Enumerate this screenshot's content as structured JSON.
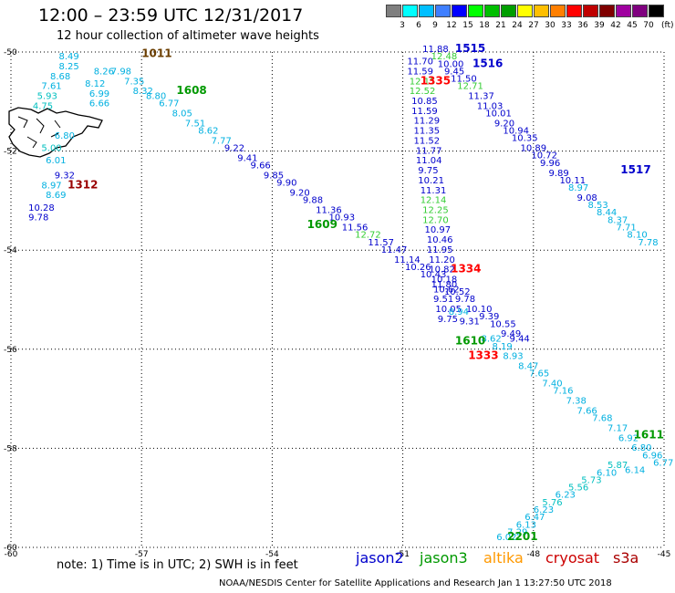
{
  "title": "12:00 – 23:59 UTC 12/31/2017",
  "subtitle": "12 hour collection of altimeter wave heights",
  "note": "note: 1) Time is in UTC; 2) SWH is in feet",
  "footer": "NOAA/NESDIS Center for Satellite Applications and Research    Jan  1 13:27:50 UTC 2018",
  "colorbar": {
    "unit": "(ft)",
    "colors": [
      "#7f7f7f",
      "#00ffff",
      "#00bfff",
      "#3f7fff",
      "#0000ff",
      "#00ff00",
      "#00bf00",
      "#009f00",
      "#ffff00",
      "#ffbf00",
      "#ff7f00",
      "#ff0000",
      "#bf0000",
      "#7f0000",
      "#9f009f",
      "#7f007f",
      "#000000"
    ],
    "labels": [
      "3",
      "6",
      "9",
      "12",
      "15",
      "18",
      "21",
      "24",
      "27",
      "30",
      "33",
      "36",
      "39",
      "42",
      "45",
      "70"
    ]
  },
  "satellites": [
    {
      "name": "jason2",
      "color": "#0000cc"
    },
    {
      "name": "jason3",
      "color": "#009900"
    },
    {
      "name": "altika",
      "color": "#ff9900"
    },
    {
      "name": "cryosat",
      "color": "#cc0000"
    },
    {
      "name": "s3a",
      "color": "#aa0000"
    }
  ],
  "axes": {
    "lon_labels": [
      "-60",
      "-57",
      "-54",
      "-51",
      "-48",
      "-45"
    ],
    "lat_labels": [
      "-50",
      "-52",
      "-54",
      "-56",
      "-58",
      "-60"
    ],
    "lon_range": [
      -60,
      -45
    ],
    "lat_range": [
      -60,
      -50
    ]
  },
  "time_labels": [
    {
      "text": "1011",
      "lon": -57.0,
      "lat": -50.1,
      "color": "#6b3e00"
    },
    {
      "text": "1608",
      "lon": -56.2,
      "lat": -50.85,
      "color": "#009900"
    },
    {
      "text": "1312",
      "lon": -58.7,
      "lat": -52.75,
      "color": "#990000"
    },
    {
      "text": "1609",
      "lon": -53.2,
      "lat": -53.55,
      "color": "#009900"
    },
    {
      "text": "1515",
      "lon": -49.8,
      "lat": -50.0,
      "color": "#0000cc"
    },
    {
      "text": "1516",
      "lon": -49.4,
      "lat": -50.3,
      "color": "#0000cc"
    },
    {
      "text": "1335",
      "lon": -50.6,
      "lat": -50.65,
      "color": "#ff0000"
    },
    {
      "text": "1517",
      "lon": -46.0,
      "lat": -52.45,
      "color": "#0000cc"
    },
    {
      "text": "1334",
      "lon": -49.9,
      "lat": -54.45,
      "color": "#ff0000"
    },
    {
      "text": "1610",
      "lon": -49.8,
      "lat": -55.9,
      "color": "#009900"
    },
    {
      "text": "1333",
      "lon": -49.5,
      "lat": -56.2,
      "color": "#ff0000"
    },
    {
      "text": "1611",
      "lon": -45.7,
      "lat": -57.8,
      "color": "#009900"
    },
    {
      "text": "2201",
      "lon": -48.6,
      "lat": -59.85,
      "color": "#009900"
    }
  ],
  "tracks": [
    {
      "name": "track-1608-1609-1610",
      "values": [
        {
          "v": "8.49",
          "lon": -58.9,
          "lat": -50.15
        },
        {
          "v": "8.25",
          "lon": -58.9,
          "lat": -50.35
        },
        {
          "v": "8.68",
          "lon": -59.1,
          "lat": -50.55
        },
        {
          "v": "7.61",
          "lon": -59.3,
          "lat": -50.75
        },
        {
          "v": "5.93",
          "lon": -59.4,
          "lat": -50.95
        },
        {
          "v": "4.75",
          "lon": -59.5,
          "lat": -51.15
        },
        {
          "v": "8.26",
          "lon": -58.1,
          "lat": -50.45
        },
        {
          "v": "8.12",
          "lon": -58.3,
          "lat": -50.7
        },
        {
          "v": "6.99",
          "lon": -58.2,
          "lat": -50.9
        },
        {
          "v": "6.66",
          "lon": -58.2,
          "lat": -51.1
        },
        {
          "v": "7.98",
          "lon": -57.7,
          "lat": -50.45
        },
        {
          "v": "7.35",
          "lon": -57.4,
          "lat": -50.65
        },
        {
          "v": "8.32",
          "lon": -57.2,
          "lat": -50.85
        },
        {
          "v": "8.80",
          "lon": -56.9,
          "lat": -50.95
        },
        {
          "v": "6.77",
          "lon": -56.6,
          "lat": -51.1
        },
        {
          "v": "8.05",
          "lon": -56.3,
          "lat": -51.3
        },
        {
          "v": "7.51",
          "lon": -56.0,
          "lat": -51.5
        },
        {
          "v": "8.62",
          "lon": -55.7,
          "lat": -51.65
        },
        {
          "v": "7.77",
          "lon": -55.4,
          "lat": -51.85
        },
        {
          "v": "9.22",
          "lon": -55.1,
          "lat": -52.0
        },
        {
          "v": "9.41",
          "lon": -54.8,
          "lat": -52.2
        },
        {
          "v": "9.66",
          "lon": -54.5,
          "lat": -52.35
        },
        {
          "v": "9.85",
          "lon": -54.2,
          "lat": -52.55
        },
        {
          "v": "9.90",
          "lon": -53.9,
          "lat": -52.7
        },
        {
          "v": "9.20",
          "lon": -53.6,
          "lat": -52.9
        },
        {
          "v": "9.88",
          "lon": -53.3,
          "lat": -53.05
        },
        {
          "v": "11.36",
          "lon": -53.0,
          "lat": -53.25
        },
        {
          "v": "10.93",
          "lon": -52.7,
          "lat": -53.4
        },
        {
          "v": "11.56",
          "lon": -52.4,
          "lat": -53.6
        },
        {
          "v": "12.72",
          "lon": -52.1,
          "lat": -53.75
        },
        {
          "v": "11.57",
          "lon": -51.8,
          "lat": -53.9
        },
        {
          "v": "11.47",
          "lon": -51.5,
          "lat": -54.05
        },
        {
          "v": "11.14",
          "lon": -51.2,
          "lat": -54.25
        },
        {
          "v": "10.26",
          "lon": -50.95,
          "lat": -54.4
        },
        {
          "v": "10.43",
          "lon": -50.6,
          "lat": -54.55
        },
        {
          "v": "11.80",
          "lon": -50.35,
          "lat": -54.75
        },
        {
          "v": "10.52",
          "lon": -50.05,
          "lat": -54.9
        },
        {
          "v": "9.78",
          "lon": -49.8,
          "lat": -55.05
        },
        {
          "v": "10.10",
          "lon": -49.55,
          "lat": -55.25
        },
        {
          "v": "9.39",
          "lon": -49.25,
          "lat": -55.4
        },
        {
          "v": "10.55",
          "lon": -49.0,
          "lat": -55.55
        },
        {
          "v": "9.49",
          "lon": -48.75,
          "lat": -55.75
        },
        {
          "v": "9.44",
          "lon": -48.55,
          "lat": -55.85
        }
      ]
    },
    {
      "name": "track-1312",
      "values": [
        {
          "v": "6.80",
          "lon": -59.0,
          "lat": -51.75
        },
        {
          "v": "5.00",
          "lon": -59.3,
          "lat": -52.0
        },
        {
          "v": "6.01",
          "lon": -59.2,
          "lat": -52.25
        },
        {
          "v": "9.32",
          "lon": -59.0,
          "lat": -52.55
        },
        {
          "v": "8.97",
          "lon": -59.3,
          "lat": -52.75
        },
        {
          "v": "8.69",
          "lon": -59.2,
          "lat": -52.95
        },
        {
          "v": "10.28",
          "lon": -59.6,
          "lat": -53.2
        },
        {
          "v": "9.78",
          "lon": -59.6,
          "lat": -53.4
        }
      ]
    },
    {
      "name": "track-1334-descending",
      "values": [
        {
          "v": "11.70",
          "lon": -50.9,
          "lat": -50.25
        },
        {
          "v": "11.59",
          "lon": -50.9,
          "lat": -50.45
        },
        {
          "v": "12.15",
          "lon": -50.85,
          "lat": -50.65
        },
        {
          "v": "12.52",
          "lon": -50.85,
          "lat": -50.85
        },
        {
          "v": "10.85",
          "lon": -50.8,
          "lat": -51.05
        },
        {
          "v": "11.59",
          "lon": -50.8,
          "lat": -51.25
        },
        {
          "v": "11.29",
          "lon": -50.75,
          "lat": -51.45
        },
        {
          "v": "11.35",
          "lon": -50.75,
          "lat": -51.65
        },
        {
          "v": "11.52",
          "lon": -50.75,
          "lat": -51.85
        },
        {
          "v": "11.77",
          "lon": -50.7,
          "lat": -52.05
        },
        {
          "v": "11.04",
          "lon": -50.7,
          "lat": -52.25
        },
        {
          "v": "9.75",
          "lon": -50.65,
          "lat": -52.45
        },
        {
          "v": "10.21",
          "lon": -50.65,
          "lat": -52.65
        },
        {
          "v": "11.31",
          "lon": -50.6,
          "lat": -52.85
        },
        {
          "v": "12.14",
          "lon": -50.6,
          "lat": -53.05
        },
        {
          "v": "12.25",
          "lon": -50.55,
          "lat": -53.25
        },
        {
          "v": "12.70",
          "lon": -50.55,
          "lat": -53.45
        },
        {
          "v": "10.97",
          "lon": -50.5,
          "lat": -53.65
        },
        {
          "v": "10.46",
          "lon": -50.45,
          "lat": -53.85
        },
        {
          "v": "11.95",
          "lon": -50.45,
          "lat": -54.05
        },
        {
          "v": "11.20",
          "lon": -50.4,
          "lat": -54.25
        },
        {
          "v": "10.82",
          "lon": -50.4,
          "lat": -54.45
        },
        {
          "v": "10.18",
          "lon": -50.35,
          "lat": -54.65
        },
        {
          "v": "10.62",
          "lon": -50.3,
          "lat": -54.85
        },
        {
          "v": "9.51",
          "lon": -50.3,
          "lat": -55.05
        },
        {
          "v": "10.05",
          "lon": -50.25,
          "lat": -55.25
        },
        {
          "v": "9.75",
          "lon": -50.2,
          "lat": -55.45
        }
      ]
    },
    {
      "name": "track-1515-1517",
      "values": [
        {
          "v": "11.88",
          "lon": -50.55,
          "lat": -50.0
        },
        {
          "v": "12.48",
          "lon": -50.35,
          "lat": -50.15
        },
        {
          "v": "10.00",
          "lon": -50.2,
          "lat": -50.3
        },
        {
          "v": "9.45",
          "lon": -50.05,
          "lat": -50.45
        },
        {
          "v": "11.50",
          "lon": -49.9,
          "lat": -50.6
        },
        {
          "v": "12.71",
          "lon": -49.75,
          "lat": -50.75
        },
        {
          "v": "11.37",
          "lon": -49.5,
          "lat": -50.95
        },
        {
          "v": "11.03",
          "lon": -49.3,
          "lat": -51.15
        },
        {
          "v": "10.01",
          "lon": -49.1,
          "lat": -51.3
        },
        {
          "v": "9.20",
          "lon": -48.9,
          "lat": -51.5
        },
        {
          "v": "10.94",
          "lon": -48.7,
          "lat": -51.65
        },
        {
          "v": "10.35",
          "lon": -48.5,
          "lat": -51.8
        },
        {
          "v": "10.89",
          "lon": -48.3,
          "lat": -52.0
        },
        {
          "v": "10.72",
          "lon": -48.05,
          "lat": -52.15
        },
        {
          "v": "9.96",
          "lon": -47.85,
          "lat": -52.3
        },
        {
          "v": "9.89",
          "lon": -47.65,
          "lat": -52.5
        },
        {
          "v": "10.11",
          "lon": -47.4,
          "lat": -52.65
        },
        {
          "v": "8.97",
          "lon": -47.2,
          "lat": -52.8
        },
        {
          "v": "9.08",
          "lon": -47.0,
          "lat": -53.0
        },
        {
          "v": "8.53",
          "lon": -46.75,
          "lat": -53.15
        },
        {
          "v": "8.44",
          "lon": -46.55,
          "lat": -53.3
        },
        {
          "v": "8.37",
          "lon": -46.3,
          "lat": -53.45
        },
        {
          "v": "7.71",
          "lon": -46.1,
          "lat": -53.6
        },
        {
          "v": "8.10",
          "lon": -45.85,
          "lat": -53.75
        },
        {
          "v": "7.78",
          "lon": -45.6,
          "lat": -53.9
        }
      ]
    },
    {
      "name": "track-1610-1611",
      "values": [
        {
          "v": "9.31",
          "lon": -49.7,
          "lat": -55.5
        },
        {
          "v": "8.94",
          "lon": -49.95,
          "lat": -55.3
        },
        {
          "v": "8.62",
          "lon": -49.2,
          "lat": -55.85
        },
        {
          "v": "8.19",
          "lon": -48.95,
          "lat": -56.0
        },
        {
          "v": "8.93",
          "lon": -48.7,
          "lat": -56.2
        },
        {
          "v": "8.47",
          "lon": -48.35,
          "lat": -56.4
        },
        {
          "v": "7.65",
          "lon": -48.1,
          "lat": -56.55
        },
        {
          "v": "7.40",
          "lon": -47.8,
          "lat": -56.75
        },
        {
          "v": "7.16",
          "lon": -47.55,
          "lat": -56.9
        },
        {
          "v": "7.38",
          "lon": -47.25,
          "lat": -57.1
        },
        {
          "v": "7.66",
          "lon": -47.0,
          "lat": -57.3
        },
        {
          "v": "7.68",
          "lon": -46.65,
          "lat": -57.45
        },
        {
          "v": "7.17",
          "lon": -46.3,
          "lat": -57.65
        },
        {
          "v": "6.92",
          "lon": -46.05,
          "lat": -57.85
        },
        {
          "v": "6.80",
          "lon": -45.75,
          "lat": -58.05
        },
        {
          "v": "6.96",
          "lon": -45.5,
          "lat": -58.2
        },
        {
          "v": "6.77",
          "lon": -45.25,
          "lat": -58.35
        },
        {
          "v": "6.14",
          "lon": -45.9,
          "lat": -58.5
        }
      ]
    },
    {
      "name": "track-2201",
      "values": [
        {
          "v": "6.02",
          "lon": -48.85,
          "lat": -59.85
        },
        {
          "v": "7.29",
          "lon": -48.6,
          "lat": -59.75
        },
        {
          "v": "6.13",
          "lon": -48.4,
          "lat": -59.6
        },
        {
          "v": "6.47",
          "lon": -48.2,
          "lat": -59.45
        },
        {
          "v": "6.23",
          "lon": -48.0,
          "lat": -59.3
        },
        {
          "v": "5.76",
          "lon": -47.8,
          "lat": -59.15
        },
        {
          "v": "6.23",
          "lon": -47.5,
          "lat": -59.0
        },
        {
          "v": "5.56",
          "lon": -47.2,
          "lat": -58.85
        },
        {
          "v": "5.73",
          "lon": -46.9,
          "lat": -58.7
        },
        {
          "v": "6.10",
          "lon": -46.55,
          "lat": -58.55
        },
        {
          "v": "5.87",
          "lon": -46.3,
          "lat": -58.4
        }
      ]
    }
  ]
}
